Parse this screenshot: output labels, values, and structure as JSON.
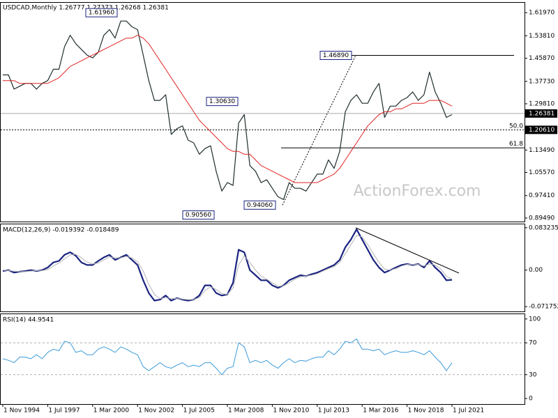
{
  "chart_data": [
    {
      "type": "line",
      "title": "USDCAD,Monthly  1.26777 1.27373 1.26268 1.26381",
      "ylim": [
        0.8825,
        1.657
      ],
      "yticks": [
        {
          "value": 1.6197,
          "label": "1.61970"
        },
        {
          "value": 1.5381,
          "label": "1.53810"
        },
        {
          "value": 1.4587,
          "label": "1.45870"
        },
        {
          "value": 1.3773,
          "label": "1.37730"
        },
        {
          "value": 1.2981,
          "label": "1.29810"
        },
        {
          "value": 1.1349,
          "label": "1.13490"
        },
        {
          "value": 1.0557,
          "label": "1.05570"
        },
        {
          "value": 0.9741,
          "label": "0.97410"
        },
        {
          "value": 0.8949,
          "label": "0.89490"
        }
      ],
      "series": [
        {
          "name": "USDCAD",
          "color": "#1e2d2d",
          "values": [
            1.4,
            1.4,
            1.35,
            1.36,
            1.37,
            1.37,
            1.35,
            1.37,
            1.38,
            1.42,
            1.42,
            1.5,
            1.54,
            1.51,
            1.49,
            1.47,
            1.46,
            1.48,
            1.54,
            1.56,
            1.53,
            1.59,
            1.59,
            1.57,
            1.56,
            1.47,
            1.38,
            1.31,
            1.31,
            1.33,
            1.19,
            1.21,
            1.22,
            1.17,
            1.16,
            1.12,
            1.14,
            1.15,
            1.06,
            0.99,
            1.02,
            1.01,
            1.23,
            1.26,
            1.08,
            1.06,
            1.02,
            1.03,
            1.0,
            0.97,
            0.96,
            1.02,
            1.0,
            1.0,
            0.99,
            1.02,
            1.05,
            1.05,
            1.1,
            1.07,
            1.13,
            1.27,
            1.31,
            1.33,
            1.3,
            1.3,
            1.34,
            1.37,
            1.25,
            1.29,
            1.29,
            1.31,
            1.32,
            1.34,
            1.31,
            1.33,
            1.41,
            1.34,
            1.3,
            1.25,
            1.26
          ]
        },
        {
          "name": "MA",
          "color": "#e02424",
          "values": [
            1.38,
            1.38,
            1.38,
            1.37,
            1.37,
            1.37,
            1.37,
            1.37,
            1.37,
            1.38,
            1.39,
            1.41,
            1.43,
            1.44,
            1.45,
            1.46,
            1.47,
            1.48,
            1.49,
            1.5,
            1.51,
            1.52,
            1.53,
            1.53,
            1.54,
            1.53,
            1.51,
            1.48,
            1.45,
            1.42,
            1.39,
            1.36,
            1.33,
            1.3,
            1.27,
            1.24,
            1.22,
            1.2,
            1.18,
            1.16,
            1.14,
            1.13,
            1.13,
            1.12,
            1.12,
            1.1,
            1.08,
            1.07,
            1.06,
            1.05,
            1.04,
            1.03,
            1.02,
            1.02,
            1.02,
            1.02,
            1.02,
            1.03,
            1.04,
            1.05,
            1.07,
            1.1,
            1.13,
            1.16,
            1.19,
            1.22,
            1.24,
            1.26,
            1.27,
            1.27,
            1.28,
            1.28,
            1.29,
            1.3,
            1.3,
            1.3,
            1.31,
            1.31,
            1.31,
            1.3,
            1.29
          ]
        }
      ],
      "annotations": [
        {
          "value": 1.6196,
          "label": "1.61960"
        },
        {
          "value": 1.3063,
          "label": "1.30630"
        },
        {
          "value": 0.9056,
          "label": "0.90560"
        },
        {
          "value": 0.9406,
          "label": "0.94060"
        },
        {
          "value": 1.4689,
          "label": "1.46890"
        }
      ],
      "price_tags": [
        {
          "value": 1.26381,
          "label": "1.26381"
        },
        {
          "value": 1.2061,
          "label": "1.20610"
        }
      ],
      "fib_levels": [
        {
          "value": 1.2048,
          "label": "50.0"
        },
        {
          "value": 1.1424,
          "label": "61.8"
        }
      ],
      "watermark": "ActionForex.com"
    },
    {
      "type": "line",
      "title": "MACD(12,26,9) -0.019392 -0.018489",
      "ylim": [
        -0.0812,
        0.0899
      ],
      "yticks": [
        0.083235,
        {
          "value": 0,
          "label": "0.00"
        },
        -0.071752
      ],
      "series": [
        {
          "name": "MACD",
          "color": "#1a2380",
          "values": [
            -0.002,
            0.0,
            -0.005,
            -0.003,
            -0.002,
            0.0,
            -0.002,
            0.0,
            0.005,
            0.015,
            0.018,
            0.03,
            0.035,
            0.028,
            0.015,
            0.01,
            0.01,
            0.018,
            0.025,
            0.03,
            0.02,
            0.025,
            0.03,
            0.02,
            0.01,
            -0.02,
            -0.045,
            -0.06,
            -0.058,
            -0.05,
            -0.06,
            -0.055,
            -0.058,
            -0.06,
            -0.058,
            -0.05,
            -0.03,
            -0.03,
            -0.045,
            -0.05,
            -0.048,
            -0.025,
            0.04,
            0.035,
            0.0,
            -0.01,
            -0.02,
            -0.02,
            -0.03,
            -0.035,
            -0.03,
            -0.02,
            -0.015,
            -0.01,
            -0.012,
            -0.008,
            -0.005,
            0.0,
            0.005,
            0.01,
            0.02,
            0.045,
            0.06,
            0.08,
            0.06,
            0.04,
            0.02,
            0.005,
            -0.005,
            0.0,
            0.005,
            0.01,
            0.012,
            0.01,
            0.012,
            0.005,
            0.018,
            0.005,
            -0.005,
            -0.02,
            -0.019
          ]
        },
        {
          "name": "Signal",
          "color": "#b4b4b4",
          "values": [
            0.0,
            -0.001,
            -0.002,
            -0.003,
            -0.003,
            -0.002,
            -0.001,
            -0.001,
            0.001,
            0.008,
            0.014,
            0.022,
            0.03,
            0.031,
            0.024,
            0.016,
            0.012,
            0.014,
            0.02,
            0.026,
            0.024,
            0.024,
            0.027,
            0.024,
            0.016,
            -0.002,
            -0.028,
            -0.048,
            -0.056,
            -0.054,
            -0.056,
            -0.056,
            -0.057,
            -0.058,
            -0.058,
            -0.054,
            -0.04,
            -0.033,
            -0.038,
            -0.046,
            -0.048,
            -0.035,
            0.01,
            0.028,
            0.015,
            0.0,
            -0.012,
            -0.018,
            -0.025,
            -0.032,
            -0.031,
            -0.025,
            -0.018,
            -0.013,
            -0.012,
            -0.01,
            -0.007,
            -0.002,
            0.003,
            0.007,
            0.015,
            0.032,
            0.05,
            0.068,
            0.065,
            0.05,
            0.032,
            0.015,
            0.002,
            0.0,
            0.003,
            0.008,
            0.011,
            0.011,
            0.011,
            0.008,
            0.012,
            0.01,
            0.002,
            -0.012,
            -0.018
          ]
        }
      ]
    },
    {
      "type": "line",
      "title": "RSI(14) 44.9541",
      "ylim": [
        -7,
        106
      ],
      "yticks": [
        100,
        70,
        30,
        0
      ],
      "levels": [
        70,
        30
      ],
      "categories": [
        "1 Nov 1994",
        null,
        null,
        null,
        null,
        null,
        null,
        null,
        "1 Jul 1997",
        null,
        null,
        null,
        null,
        null,
        null,
        null,
        "1 Mar 2000",
        null,
        null,
        null,
        null,
        null,
        null,
        null,
        "1 Nov 2002",
        null,
        null,
        null,
        null,
        null,
        null,
        null,
        "1 Jul 2005",
        null,
        null,
        null,
        null,
        null,
        null,
        null,
        "1 Mar 2008",
        null,
        null,
        null,
        null,
        null,
        null,
        null,
        "1 Nov 2010",
        null,
        null,
        null,
        null,
        null,
        null,
        null,
        "1 Jul 2013",
        null,
        null,
        null,
        null,
        null,
        null,
        null,
        "1 Mar 2016",
        null,
        null,
        null,
        null,
        null,
        null,
        null,
        "1 Nov 2018",
        null,
        null,
        null,
        null,
        null,
        null,
        null,
        "1 Jul 2021"
      ],
      "series": [
        {
          "name": "RSI",
          "color": "#3a9ad9",
          "values": [
            50,
            48,
            45,
            52,
            52,
            50,
            55,
            50,
            58,
            62,
            60,
            72,
            70,
            58,
            60,
            55,
            55,
            62,
            65,
            62,
            58,
            65,
            62,
            58,
            55,
            40,
            35,
            40,
            45,
            40,
            38,
            42,
            45,
            40,
            42,
            40,
            45,
            45,
            38,
            30,
            38,
            40,
            70,
            65,
            45,
            48,
            45,
            48,
            42,
            38,
            45,
            50,
            45,
            48,
            47,
            50,
            52,
            52,
            60,
            55,
            62,
            72,
            70,
            75,
            62,
            62,
            60,
            62,
            55,
            58,
            60,
            58,
            58,
            60,
            58,
            55,
            60,
            52,
            45,
            35,
            45
          ]
        }
      ]
    }
  ]
}
